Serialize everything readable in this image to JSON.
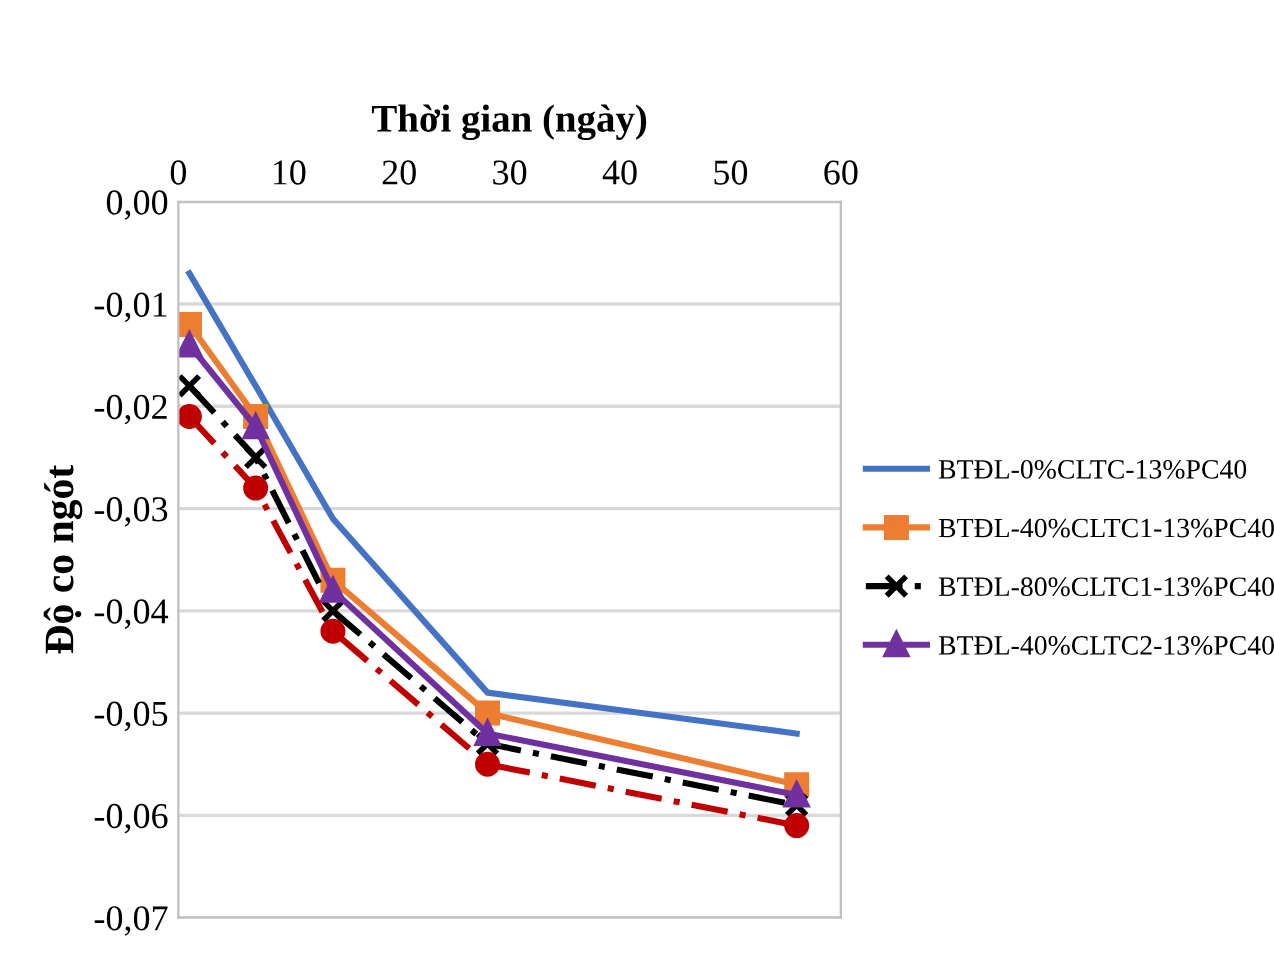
{
  "chart_data": {
    "type": "line",
    "xlabel": "Thời gian (ngày)",
    "ylabel": "Độ co ngót",
    "xlim": [
      0,
      60
    ],
    "xticks": [
      0,
      10,
      20,
      30,
      40,
      50,
      60
    ],
    "ylim": [
      -0.07,
      0
    ],
    "yticks": [
      {
        "value": 0,
        "label": "0,00"
      },
      {
        "value": -0.01,
        "label": "-0,01"
      },
      {
        "value": -0.02,
        "label": "-0,02"
      },
      {
        "value": -0.03,
        "label": "-0,03"
      },
      {
        "value": -0.04,
        "label": "-0,04"
      },
      {
        "value": -0.05,
        "label": "-0,05"
      },
      {
        "value": -0.06,
        "label": "-0,06"
      },
      {
        "value": -0.07,
        "label": "-0,07"
      }
    ],
    "grid": "y",
    "legend": "right",
    "x": [
      1,
      7,
      14,
      28,
      56
    ],
    "series": [
      {
        "name": "BTĐL-0%CLTC-13%PC40",
        "color": "#4472c4",
        "marker": "none",
        "line_style": "solid",
        "values": [
          -0.007,
          -0.018,
          -0.031,
          -0.048,
          -0.052
        ]
      },
      {
        "name": "BTĐL-40%CLTC1-13%PC40",
        "color": "#ed7d31",
        "marker": "square",
        "line_style": "solid",
        "values": [
          -0.012,
          -0.021,
          -0.037,
          -0.05,
          -0.057
        ]
      },
      {
        "name": "BTĐL-80%CLTC1-13%PC40",
        "color": "#000000",
        "marker": "cross",
        "line_style": "dashed",
        "values": [
          -0.018,
          -0.025,
          -0.04,
          -0.053,
          -0.059
        ]
      },
      {
        "name": "BTĐL-40%CLTC2-13%PC40",
        "color": "#7030a0",
        "marker": "triangle",
        "line_style": "solid",
        "values": [
          -0.014,
          -0.022,
          -0.038,
          -0.052,
          -0.058
        ]
      },
      {
        "color": "#c00000",
        "marker": "circle",
        "line_style": "dashed",
        "values": [
          -0.021,
          -0.028,
          -0.042,
          -0.055,
          -0.061
        ]
      }
    ]
  }
}
